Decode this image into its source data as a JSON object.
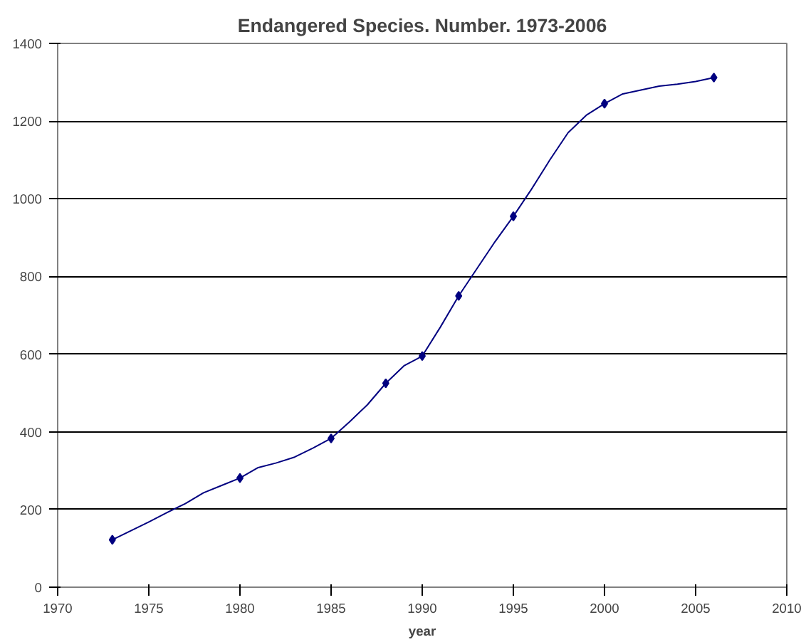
{
  "chart_data": {
    "type": "line",
    "title": "Endangered Species. Number. 1973-2006",
    "xlabel": "year",
    "series": [
      {
        "color": "#000080",
        "marker": "none",
        "x": [
          1973,
          1974,
          1975,
          1976,
          1977,
          1978,
          1979,
          1980,
          1981,
          1982,
          1983,
          1984,
          1985,
          1986,
          1987,
          1988,
          1989,
          1990,
          1991,
          1992,
          1993,
          1994,
          1995,
          1996,
          1997,
          1998,
          1999,
          2000,
          2001,
          2002,
          2003,
          2004,
          2005,
          2006
        ],
        "values": [
          122,
          145,
          168,
          192,
          215,
          243,
          262,
          281,
          308,
          320,
          335,
          358,
          383,
          425,
          470,
          525,
          570,
          595,
          670,
          750,
          820,
          890,
          955,
          1025,
          1100,
          1170,
          1215,
          1245,
          1270,
          1280,
          1290,
          1295,
          1302,
          1312
        ]
      },
      {
        "type": "scatter",
        "color": "#000080",
        "marker": "diamond",
        "x": [
          1973,
          1980,
          1985,
          1988,
          1990,
          1992,
          1995,
          2000,
          2006
        ],
        "values": [
          122,
          281,
          383,
          525,
          595,
          750,
          955,
          1245,
          1312
        ]
      }
    ],
    "xlim": [
      1970,
      2010
    ],
    "xticks": [
      1970,
      1975,
      1980,
      1985,
      1990,
      1995,
      2000,
      2005,
      2010
    ],
    "ylim": [
      0,
      1400
    ],
    "yticks": [
      0,
      200,
      400,
      600,
      800,
      1000,
      1200,
      1400
    ],
    "grid": "y"
  }
}
